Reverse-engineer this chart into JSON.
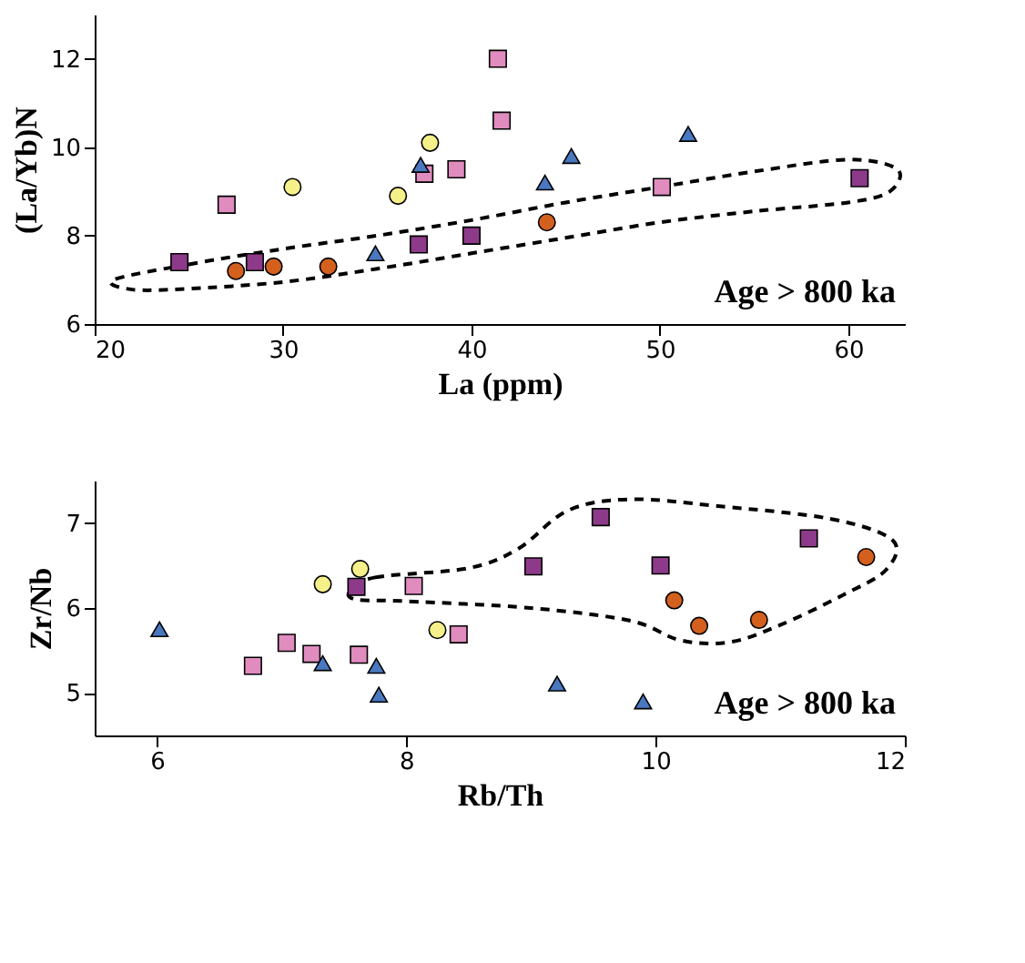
{
  "chart_data": [
    {
      "type": "scatter",
      "xlabel": "La (ppm)",
      "ylabel": "(La/Yb)N",
      "xlim": [
        20,
        63
      ],
      "xticks": [
        20,
        30,
        40,
        50,
        60
      ],
      "ylim": [
        6,
        13
      ],
      "yticks": [
        6,
        8,
        10,
        12
      ],
      "grid": false,
      "annotations": [
        "Age > 800 ka"
      ],
      "series": [
        {
          "color": "#8e3a8a",
          "marker": "square",
          "x": [
            24.5,
            28.5,
            37.2,
            40.0,
            60.6
          ],
          "values": [
            7.4,
            7.4,
            7.8,
            8.0,
            9.3
          ]
        },
        {
          "color": "#e08cbf",
          "marker": "square",
          "x": [
            27.0,
            37.5,
            39.2,
            41.4,
            41.6,
            50.1
          ],
          "values": [
            8.7,
            9.4,
            9.5,
            12.0,
            10.6,
            9.1
          ]
        },
        {
          "color": "#d4601e",
          "marker": "circle",
          "x": [
            27.5,
            29.5,
            32.4,
            44.0
          ],
          "values": [
            7.2,
            7.3,
            7.3,
            8.3
          ]
        },
        {
          "color": "#f5f08a",
          "marker": "circle",
          "x": [
            30.5,
            36.1,
            37.8
          ],
          "values": [
            9.1,
            8.9,
            10.1
          ]
        },
        {
          "color": "#4a78c0",
          "marker": "triangle",
          "x": [
            34.9,
            37.3,
            43.9,
            45.3,
            51.5
          ],
          "values": [
            7.6,
            9.6,
            9.2,
            9.8,
            10.3
          ]
        }
      ]
    },
    {
      "type": "scatter",
      "xlabel": "Rb/Th",
      "ylabel": "Zr/Nb",
      "xlim": [
        5.5,
        12
      ],
      "xticks": [
        6,
        8,
        10,
        12
      ],
      "ylim": [
        4.5,
        7.5
      ],
      "yticks": [
        5,
        6,
        7
      ],
      "grid": false,
      "annotations": [
        "Age > 800 ka"
      ],
      "series": [
        {
          "color": "#8e3a8a",
          "marker": "square",
          "x": [
            7.6,
            9.02,
            9.56,
            10.04,
            11.23
          ],
          "values": [
            6.25,
            6.49,
            7.07,
            6.5,
            6.82
          ]
        },
        {
          "color": "#e08cbf",
          "marker": "square",
          "x": [
            6.77,
            7.04,
            7.24,
            7.62,
            8.06,
            8.42
          ],
          "values": [
            5.32,
            5.59,
            5.46,
            5.45,
            6.26,
            5.69
          ]
        },
        {
          "color": "#d4601e",
          "marker": "circle",
          "x": [
            10.15,
            10.35,
            10.83,
            11.69
          ],
          "values": [
            6.09,
            5.79,
            5.86,
            6.6
          ]
        },
        {
          "color": "#f5f08a",
          "marker": "circle",
          "x": [
            7.33,
            7.63,
            8.25
          ],
          "values": [
            6.28,
            6.46,
            5.74
          ]
        },
        {
          "color": "#4a78c0",
          "marker": "triangle",
          "x": [
            6.02,
            7.33,
            7.76,
            7.78,
            9.21,
            9.9
          ],
          "values": [
            5.75,
            5.35,
            5.32,
            4.98,
            5.11,
            4.9
          ]
        }
      ]
    }
  ]
}
